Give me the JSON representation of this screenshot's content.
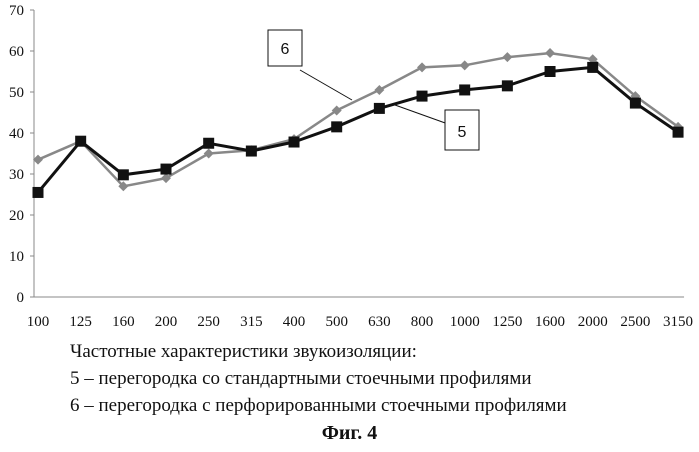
{
  "chart_data": {
    "type": "line",
    "categories": [
      "100",
      "125",
      "160",
      "200",
      "250",
      "315",
      "400",
      "500",
      "630",
      "800",
      "1000",
      "1250",
      "1600",
      "2000",
      "2500",
      "3150"
    ],
    "series": [
      {
        "name": "5",
        "color": "#111111",
        "marker": "square",
        "values": [
          25.5,
          38,
          29.8,
          31.2,
          37.5,
          35.6,
          37.8,
          41.5,
          46,
          49,
          50.5,
          51.5,
          55,
          56,
          47.3,
          40.2
        ]
      },
      {
        "name": "6",
        "color": "#888888",
        "marker": "diamond",
        "values": [
          33.5,
          38,
          27,
          29,
          35,
          35.8,
          38.5,
          45.5,
          50.5,
          56,
          56.5,
          58.5,
          59.5,
          58,
          49,
          41.5
        ]
      }
    ],
    "yticks": [
      "0",
      "10",
      "20",
      "30",
      "40",
      "50",
      "60",
      "70"
    ],
    "ylim": [
      0,
      70
    ],
    "grid": false,
    "callouts": [
      "6",
      "5"
    ]
  },
  "caption": {
    "title": "Частотные характеристики звукоизоляции:",
    "line5": "5 – перегородка со стандартными стоечными профилями",
    "line6": "6 – перегородка с перфорированными стоечными профилями"
  },
  "figure_label": "Фиг. 4"
}
